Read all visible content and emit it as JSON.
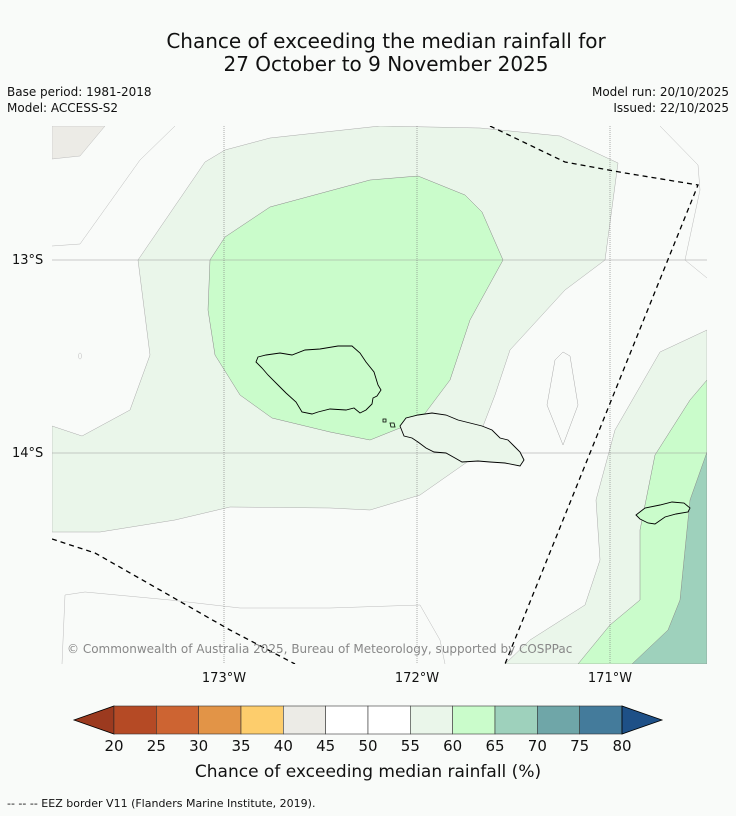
{
  "title_line1": "Chance of exceeding the median rainfall for",
  "title_line2": "27 October to 9 November 2025",
  "base_period": "Base period: 1981-2018",
  "model": "Model: ACCESS-S2",
  "model_run": "Model run: 20/10/2025",
  "issued": "Issued: 22/10/2025",
  "lat_labels": [
    "13°S",
    "14°S"
  ],
  "lon_labels": [
    "173°W",
    "172°W",
    "171°W"
  ],
  "copyright": "© Commonwealth of Australia 2025, Bureau of Meteorology, supported by COSPPac",
  "colorbar": {
    "title": "Chance of exceeding median rainfall (%)",
    "ticks": [
      "20",
      "25",
      "30",
      "35",
      "40",
      "45",
      "50",
      "55",
      "60",
      "65",
      "70",
      "75",
      "80"
    ],
    "colors": [
      "#b54a25",
      "#cd6432",
      "#e29447",
      "#fdcd6c",
      "#ecebe6",
      "#ffffff",
      "#ffffff",
      "#eaf6ea",
      "#cafccb",
      "#9ed1bc",
      "#6fa6a8",
      "#447b9b"
    ],
    "under_color": "#9c3a1f",
    "over_color": "#1e5087"
  },
  "footer": "--  --  -- EEZ border V11 (Flanders Marine Institute, 2019)."
}
